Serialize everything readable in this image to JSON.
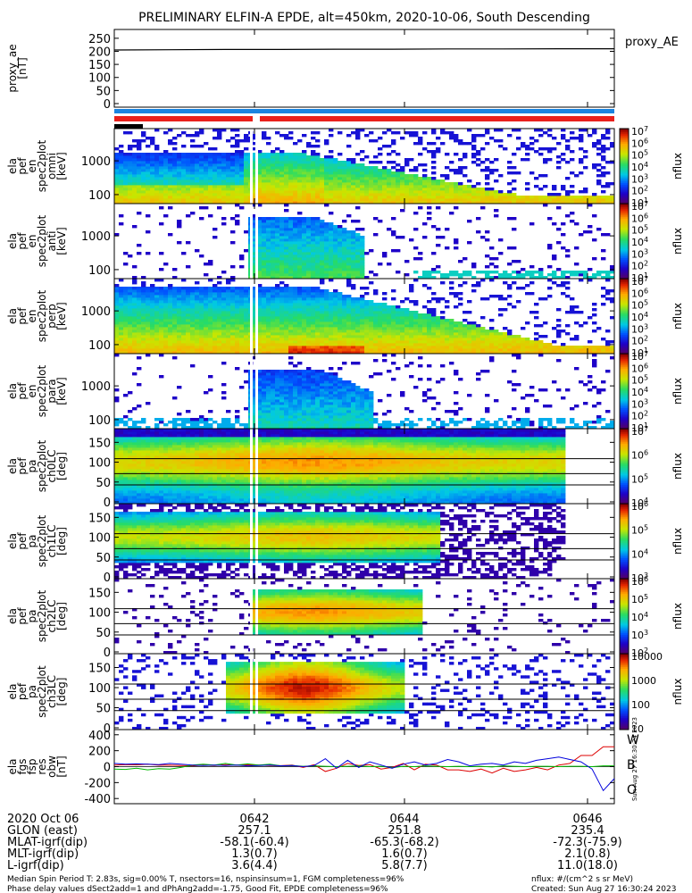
{
  "chart_data": {
    "type": "heatmap",
    "title": "PRELIMINARY ELFIN-A EPDE, alt=450km, 2020-10-06, South Descending",
    "time_ticks": [
      "0642",
      "0644",
      "0646"
    ],
    "panels": [
      {
        "id": "proxy_ae",
        "type": "line",
        "ylabel": [
          "proxy_ae",
          "[nT]"
        ],
        "yticks": [
          0,
          50,
          100,
          150,
          200,
          250
        ],
        "ylim": [
          0,
          270
        ],
        "legend": "proxy_AE",
        "values": [
          205,
          206,
          207,
          207,
          208,
          208,
          209,
          209,
          210,
          210
        ]
      },
      {
        "id": "ela_pef_en_omni",
        "type": "heatmap",
        "ylabel": [
          "ela",
          "pef",
          "en",
          "spec2plot",
          "omni",
          "[keV]"
        ],
        "yticks": [
          "1000",
          "100"
        ],
        "cbar_ticks": [
          "10^7",
          "10^6",
          "10^5",
          "10^4",
          "10^3",
          "10^2",
          "10^1"
        ],
        "cbar_label": "nflux"
      },
      {
        "id": "ela_pef_en_anti",
        "type": "heatmap",
        "ylabel": [
          "ela",
          "pef",
          "en",
          "spec2plot",
          "anti",
          "[keV]"
        ],
        "yticks": [
          "1000",
          "100"
        ],
        "cbar_ticks": [
          "10^7",
          "10^6",
          "10^5",
          "10^4",
          "10^3",
          "10^2",
          "10^1"
        ],
        "cbar_label": "nflux"
      },
      {
        "id": "ela_pef_en_perp",
        "type": "heatmap",
        "ylabel": [
          "ela",
          "pef",
          "en",
          "spec2plot",
          "perp",
          "[keV]"
        ],
        "yticks": [
          "1000",
          "100"
        ],
        "cbar_ticks": [
          "10^7",
          "10^6",
          "10^5",
          "10^4",
          "10^3",
          "10^2",
          "10^1"
        ],
        "cbar_label": "nflux"
      },
      {
        "id": "ela_pef_en_para",
        "type": "heatmap",
        "ylabel": [
          "ela",
          "pef",
          "en",
          "spec2plot",
          "para",
          "[keV]"
        ],
        "yticks": [
          "1000",
          "100"
        ],
        "cbar_ticks": [
          "10^7",
          "10^6",
          "10^5",
          "10^4",
          "10^3",
          "10^2",
          "10^1"
        ],
        "cbar_label": "nflux"
      },
      {
        "id": "ela_pef_pa_ch0",
        "type": "heatmap",
        "ylabel": [
          "ela",
          "pef",
          "pa",
          "spec2plot",
          "ch0LC",
          "[deg]"
        ],
        "yticks": [
          0,
          50,
          100,
          150
        ],
        "cbar_ticks": [
          "10^7",
          "10^6",
          "10^5",
          "10^4"
        ],
        "cbar_label": "nflux"
      },
      {
        "id": "ela_pef_pa_ch1",
        "type": "heatmap",
        "ylabel": [
          "ela",
          "pef",
          "pa",
          "spec2plot",
          "ch1LC",
          "[deg]"
        ],
        "yticks": [
          0,
          50,
          100,
          150
        ],
        "cbar_ticks": [
          "10^6",
          "10^5",
          "10^4",
          "10^3"
        ],
        "cbar_label": "nflux"
      },
      {
        "id": "ela_pef_pa_ch2",
        "type": "heatmap",
        "ylabel": [
          "ela",
          "pef",
          "pa",
          "spec2plot",
          "ch2LC",
          "[deg]"
        ],
        "yticks": [
          0,
          50,
          100,
          150
        ],
        "cbar_ticks": [
          "10^6",
          "10^5",
          "10^4",
          "10^3",
          "10^2"
        ],
        "cbar_label": "nflux"
      },
      {
        "id": "ela_pef_pa_ch3",
        "type": "heatmap",
        "ylabel": [
          "ela",
          "pef",
          "pa",
          "spec2plot",
          "ch3LC",
          "[deg]"
        ],
        "yticks": [
          0,
          50,
          100,
          150
        ],
        "cbar_ticks": [
          "10000",
          "1000",
          "100",
          "10"
        ],
        "cbar_label": "nflux"
      },
      {
        "id": "ela_fgs_fsp_res_obw",
        "type": "line",
        "ylabel": [
          "ela",
          "fgs",
          "fsp",
          "res",
          "obw",
          "[nT]"
        ],
        "yticks": [
          -400,
          -200,
          0,
          200,
          400
        ],
        "ylim": [
          -420,
          420
        ],
        "series": [
          {
            "name": "W",
            "color": "#dd0000",
            "values": [
              20,
              25,
              22,
              30,
              18,
              20,
              15,
              10,
              20,
              15,
              25,
              18,
              22,
              20,
              15,
              12,
              20,
              -10,
              25,
              -60,
              -20,
              40,
              15,
              25,
              -30,
              -10,
              40,
              -40,
              30,
              20,
              -40,
              -40,
              -60,
              -30,
              -80,
              -20,
              -60,
              -40,
              -10,
              -40,
              20,
              40,
              140,
              140,
              250,
              250
            ]
          },
          {
            "name": "B",
            "color": "#00bb00",
            "values": [
              -30,
              -35,
              -20,
              -40,
              -25,
              -30,
              -10,
              20,
              30,
              20,
              40,
              20,
              35,
              20,
              30,
              10,
              15,
              5,
              10,
              5,
              0,
              5,
              10,
              0,
              5,
              -15,
              5,
              0,
              10,
              5,
              0,
              5,
              0,
              5,
              -5,
              10,
              5,
              0,
              5,
              5,
              0,
              5,
              5,
              0,
              10,
              10
            ]
          },
          {
            "name": "O",
            "color": "#0000dd",
            "values": [
              40,
              30,
              35,
              30,
              25,
              40,
              30,
              20,
              15,
              20,
              15,
              20,
              10,
              15,
              20,
              10,
              15,
              0,
              15,
              100,
              -20,
              80,
              -10,
              60,
              20,
              -20,
              30,
              60,
              20,
              40,
              90,
              60,
              10,
              30,
              40,
              20,
              60,
              40,
              80,
              100,
              120,
              90,
              60,
              -30,
              -300,
              -150
            ]
          }
        ]
      }
    ],
    "footer": {
      "rows": [
        {
          "label": "2020 Oct 06",
          "values": [
            "0642",
            "0644",
            "0646"
          ]
        },
        {
          "label": "GLON (east)",
          "values": [
            "257.1",
            "251.8",
            "235.4"
          ]
        },
        {
          "label": "MLAT-igrf(dip)",
          "values": [
            "-58.1(-60.4)",
            "-65.3(-68.2)",
            "-72.3(-75.9)"
          ]
        },
        {
          "label": "MLT-igrf(dip)",
          "values": [
            "1.3(0.7)",
            "1.6(0.7)",
            "2.1(0.8)"
          ]
        },
        {
          "label": "L-igrf(dip)",
          "values": [
            "3.6(4.4)",
            "5.8(7.7)",
            "11.0(18.0)"
          ]
        }
      ],
      "note1": "Median Spin Period T: 2.83s, sig=0.00% T, nsectors=16, nspinsinsum=1, FGM completeness=96%",
      "note2": "Phase delay values dSect2add=1 and dPhAng2add=-1.75, Good Fit, EPDE completeness=96%",
      "units": "nflux: #/(cm^2 s sr MeV)",
      "created": "Created: Sun Aug 27 16:30:24 2023",
      "side_stamp": "Sun Aug 27 16:30:24 2023"
    }
  }
}
